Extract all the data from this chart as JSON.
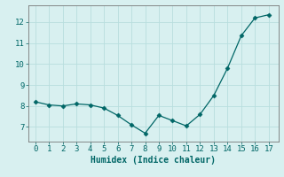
{
  "x": [
    0,
    1,
    2,
    3,
    4,
    5,
    6,
    7,
    8,
    9,
    10,
    11,
    12,
    13,
    14,
    15,
    16,
    17
  ],
  "y": [
    8.2,
    8.05,
    8.0,
    8.1,
    8.05,
    7.9,
    7.55,
    7.1,
    6.7,
    7.55,
    7.3,
    7.05,
    7.6,
    8.5,
    9.8,
    11.35,
    12.2,
    12.35
  ],
  "xlabel": "Humidex (Indice chaleur)",
  "xlim": [
    -0.5,
    17.7
  ],
  "ylim": [
    6.3,
    12.8
  ],
  "yticks": [
    7,
    8,
    9,
    10,
    11,
    12
  ],
  "xticks": [
    0,
    1,
    2,
    3,
    4,
    5,
    6,
    7,
    8,
    9,
    10,
    11,
    12,
    13,
    14,
    15,
    16,
    17
  ],
  "line_color": "#006666",
  "marker": "D",
  "marker_size": 2.5,
  "bg_color": "#d8f0f0",
  "grid_color": "#b8dede",
  "text_color": "#006666",
  "spine_color": "#777777"
}
